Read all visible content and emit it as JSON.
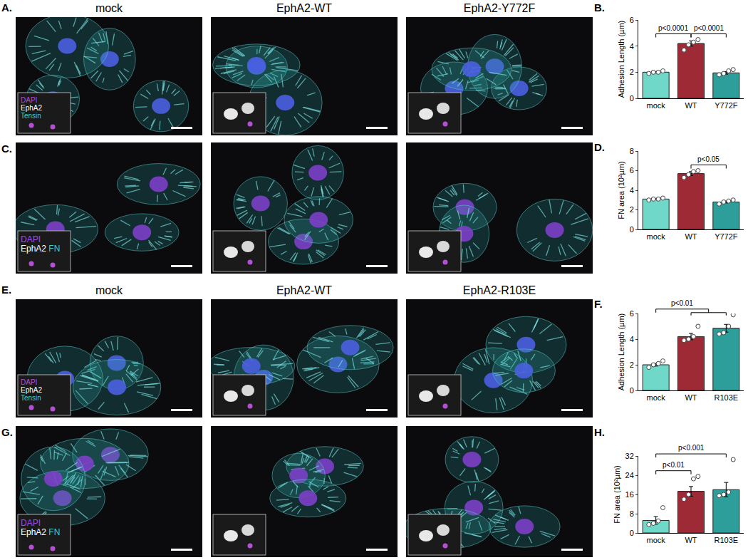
{
  "image_rows": [
    {
      "letter": "A.",
      "titles": [
        "mock",
        "EphA2-WT",
        "EphA2-Y772F"
      ],
      "stain_labels": [
        [
          {
            "text": "DAPI",
            "color": "#b44fd6"
          }
        ],
        [
          {
            "text": "EphA2",
            "color": "#ffffff"
          }
        ],
        [
          {
            "text": "Tensin",
            "color": "#46c8c8"
          }
        ]
      ]
    },
    {
      "letter": "C.",
      "stain_labels": [
        [
          {
            "text": "DAPI",
            "color": "#a844e8"
          }
        ],
        [
          {
            "text": "EphA2",
            "color": "#ffffff"
          },
          {
            "text": "FN",
            "color": "#46c8c8"
          }
        ]
      ]
    },
    {
      "letter": "E.",
      "titles": [
        "mock",
        "EphA2-WT",
        "EphA2-R103E"
      ],
      "stain_labels": [
        [
          {
            "text": "DAPI",
            "color": "#b44fd6"
          }
        ],
        [
          {
            "text": "EphA2",
            "color": "#ffffff"
          }
        ],
        [
          {
            "text": "Tensin",
            "color": "#46c8c8"
          }
        ]
      ]
    },
    {
      "letter": "G.",
      "stain_labels": [
        [
          {
            "text": "DAPI",
            "color": "#a844e8"
          }
        ],
        [
          {
            "text": "EphA2",
            "color": "#ffffff"
          },
          {
            "text": "FN",
            "color": "#46c8c8"
          }
        ]
      ]
    }
  ],
  "chart_data": [
    {
      "letter": "B.",
      "type": "bar",
      "y_label": "Adhesion Length (µm)",
      "categories": [
        "mock",
        "WT",
        "Y772F"
      ],
      "values": [
        2.0,
        4.2,
        1.95
      ],
      "errors": [
        0.05,
        0.2,
        0.1
      ],
      "points": [
        [
          1.9,
          2.0,
          2.0,
          2.1
        ],
        [
          3.7,
          4.1,
          4.3,
          4.5
        ],
        [
          1.8,
          1.9,
          2.1,
          2.2
        ]
      ],
      "colors": [
        "#6fd8c9",
        "#9e2a35",
        "#2e9e9b"
      ],
      "ylim": [
        0,
        6
      ],
      "yticks": [
        0,
        2,
        4,
        6
      ],
      "grid": false,
      "significance": [
        {
          "from": "mock",
          "to": [
            "WT"
          ],
          "label": "p<0.0001"
        },
        {
          "from": "WT",
          "to": [
            "Y772F"
          ],
          "label": "p<0.0001"
        }
      ]
    },
    {
      "letter": "D.",
      "type": "bar",
      "y_label": "FN area (10²µm)",
      "categories": [
        "mock",
        "WT",
        "Y772F"
      ],
      "values": [
        3.1,
        5.7,
        2.8
      ],
      "errors": [
        0.05,
        0.2,
        0.1
      ],
      "points": [
        [
          3.0,
          3.1,
          3.1,
          3.2
        ],
        [
          5.3,
          5.6,
          5.9,
          6.0
        ],
        [
          2.6,
          2.8,
          2.9,
          3.0
        ]
      ],
      "colors": [
        "#6fd8c9",
        "#9e2a35",
        "#2e9e9b"
      ],
      "ylim": [
        0,
        8
      ],
      "yticks": [
        0,
        2,
        4,
        6,
        8
      ],
      "grid": false,
      "significance": [
        {
          "from": "WT",
          "to": [
            "Y772F"
          ],
          "label": "p<0.05"
        }
      ]
    },
    {
      "letter": "F.",
      "type": "bar",
      "y_label": "Adhesion Length (µm)",
      "categories": [
        "mock",
        "WT",
        "R103E"
      ],
      "values": [
        2.0,
        4.2,
        4.85
      ],
      "errors": [
        0.1,
        0.25,
        0.3
      ],
      "points": [
        [
          1.8,
          2.0,
          2.1,
          2.3
        ],
        [
          3.9,
          4.0,
          4.2,
          5.0
        ],
        [
          4.4,
          4.5,
          5.0,
          5.9
        ]
      ],
      "colors": [
        "#6fd8c9",
        "#9e2a35",
        "#2e9e9b"
      ],
      "ylim": [
        0,
        6
      ],
      "yticks": [
        0,
        2,
        4,
        6
      ],
      "grid": false,
      "significance": [
        {
          "from": "mock",
          "to": [
            "WT",
            "R103E"
          ],
          "label": "p<0.01"
        }
      ]
    },
    {
      "letter": "H.",
      "type": "bar",
      "y_label": "FN area (10²µm)",
      "categories": [
        "mock",
        "WT",
        "R103E"
      ],
      "values": [
        5.2,
        17.3,
        18.0
      ],
      "errors": [
        1.6,
        2.0,
        3.0
      ],
      "points": [
        [
          3.5,
          4.0,
          5.0,
          10.5
        ],
        [
          14.0,
          16.0,
          22.5,
          23.5
        ],
        [
          15.5,
          16.0,
          17.0,
          30.5
        ]
      ],
      "colors": [
        "#6fd8c9",
        "#9e2a35",
        "#2e9e9b"
      ],
      "ylim": [
        0,
        32
      ],
      "yticks": [
        0,
        8,
        16,
        24,
        32
      ],
      "grid": false,
      "significance": [
        {
          "from": "mock",
          "to": [
            "WT"
          ],
          "label": "p<0.01"
        },
        {
          "from": "mock",
          "to": [
            "R103E"
          ],
          "label": "p<0.001"
        }
      ]
    }
  ]
}
